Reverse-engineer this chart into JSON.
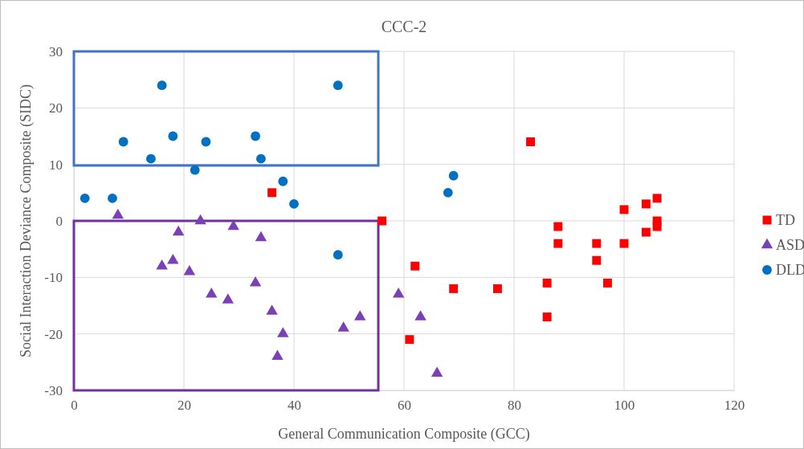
{
  "chart_data": {
    "type": "scatter",
    "title": "CCC-2",
    "xlabel": "General Communication Composite (GCC)",
    "ylabel": "Social Interaction Deviance Composite (SIDC)",
    "xlim": [
      0,
      120
    ],
    "xticks": [
      0,
      20,
      40,
      60,
      80,
      100,
      120
    ],
    "ylim": [
      -30,
      30
    ],
    "yticks": [
      -30,
      -20,
      -10,
      0,
      10,
      20,
      30
    ],
    "grid": true,
    "legend": "right",
    "series": [
      {
        "name": "TD",
        "color": "#ff0000",
        "marker": "square",
        "x": [
          36,
          56,
          62,
          61,
          69,
          77,
          83,
          86,
          86,
          88,
          88,
          95,
          95,
          97,
          100,
          100,
          104,
          104,
          106,
          106,
          106
        ],
        "values": [
          5,
          0,
          -8,
          -21,
          -12,
          -12,
          14,
          -11,
          -17,
          -1,
          -4,
          -4,
          -7,
          -11,
          2,
          -4,
          3,
          -2,
          4,
          0,
          -1
        ]
      },
      {
        "name": "ASD",
        "color": "#7b3fb8",
        "marker": "triangle",
        "x": [
          8,
          16,
          18,
          19,
          21,
          23,
          25,
          28,
          29,
          33,
          34,
          36,
          37,
          38,
          49,
          52,
          59,
          63,
          66
        ],
        "values": [
          1,
          -8,
          -7,
          -2,
          -9,
          0,
          -13,
          -14,
          -1,
          -11,
          -3,
          -16,
          -24,
          -20,
          -19,
          -17,
          -13,
          -17,
          -27
        ]
      },
      {
        "name": "DLD",
        "color": "#0070c0",
        "marker": "circle",
        "x": [
          2,
          7,
          9,
          14,
          16,
          18,
          22,
          24,
          33,
          34,
          38,
          40,
          48,
          48,
          68,
          69
        ],
        "values": [
          4,
          4,
          14,
          11,
          24,
          15,
          9,
          14,
          15,
          11,
          7,
          3,
          24,
          -6,
          5,
          8
        ]
      }
    ]
  }
}
